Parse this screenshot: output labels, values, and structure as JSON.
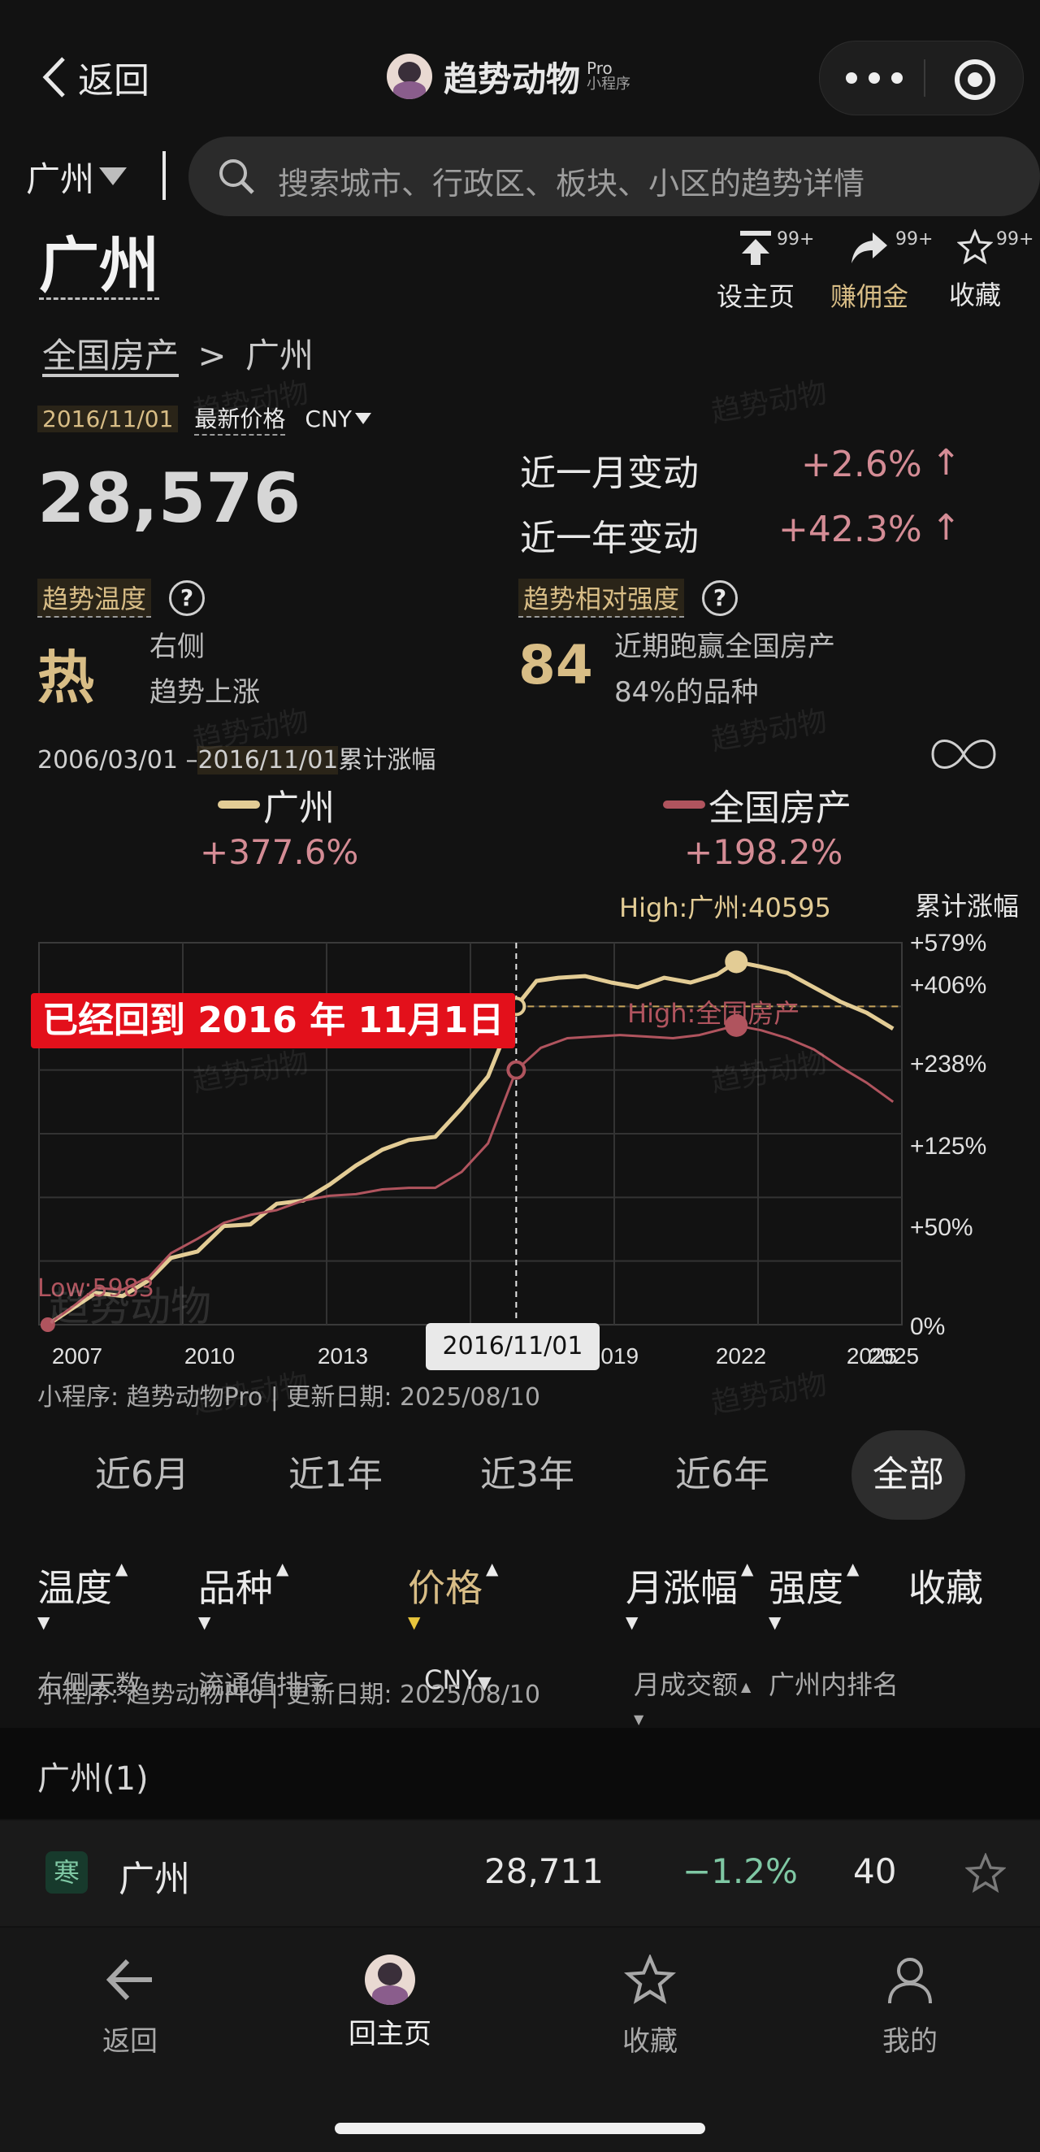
{
  "topbar": {
    "back_label": "返回",
    "app_title": "趋势动物",
    "pro_label": "Pro",
    "mini_label": "小程序"
  },
  "search": {
    "city": "广州",
    "placeholder": "搜索城市、行政区、板块、小区的趋势详情"
  },
  "header": {
    "title": "广州",
    "breadcrumb_root": "全国房产",
    "breadcrumb_sep": ">",
    "breadcrumb_current": "广州",
    "actions": [
      {
        "label": "设主页",
        "count": "99+"
      },
      {
        "label": "赚佣金",
        "count": "99+"
      },
      {
        "label": "收藏",
        "count": "99+"
      }
    ]
  },
  "price": {
    "date": "2016/11/01",
    "label": "最新价格",
    "currency": "CNY",
    "value": "28,576"
  },
  "changes": {
    "month_label": "近一月变动",
    "month_value": "+2.6%",
    "month_arrow": "↑",
    "year_label": "近一年变动",
    "year_value": "+42.3%",
    "year_arrow": "↑"
  },
  "trend_temp": {
    "label": "趋势温度",
    "value": "热",
    "desc1": "右侧",
    "desc2": "趋势上涨"
  },
  "strength": {
    "label": "趋势相对强度",
    "value": "84",
    "desc1": "近期跑赢全国房产",
    "desc2": "84%的品种"
  },
  "watermark": "趋势动物",
  "chart_header": {
    "range_start": "2006/03/01 –",
    "range_end": "2016/11/01",
    "range_suffix": "累计涨幅",
    "series1_name": "广州",
    "series1_value": "+377.6%",
    "series2_name": "全国房产",
    "series2_value": "+198.2%",
    "high1_label": "High:广州:40595",
    "high2_label": "High:全国房产",
    "y_title": "累计涨幅",
    "low_label": "Low:5983",
    "banner": "已经回到 2016 年 11月1日",
    "cursor_date": "2016/11/01",
    "source": "小程序: 趋势动物Pro | 更新日期: 2025/08/10"
  },
  "chart_data": {
    "type": "line",
    "y_ticks": [
      "+579%",
      "+406%",
      "+238%",
      "+125%",
      "+50%",
      "0%"
    ],
    "x_ticks": [
      "2007",
      "2010",
      "2013",
      "2019",
      "2022",
      "2025",
      "2025"
    ],
    "series": [
      {
        "name": "广州",
        "color": "#e3cc95",
        "x": [
          2006.2,
          2006.8,
          2007.3,
          2007.9,
          2008.5,
          2009.0,
          2009.6,
          2010.2,
          2010.8,
          2011.4,
          2012.0,
          2012.6,
          2013.2,
          2013.8,
          2014.4,
          2015.0,
          2015.6,
          2016.2,
          2016.84,
          2017.3,
          2017.8,
          2018.4,
          2019.0,
          2019.6,
          2020.2,
          2020.8,
          2021.4,
          2021.84,
          2022.4,
          2023.0,
          2023.6,
          2024.2,
          2024.8,
          2025.4
        ],
        "y": [
          0,
          55,
          100,
          90,
          140,
          210,
          230,
          310,
          315,
          380,
          390,
          440,
          500,
          550,
          580,
          590,
          680,
          780,
          1000,
          1080,
          1090,
          1095,
          1075,
          1060,
          1090,
          1075,
          1100,
          1140,
          1125,
          1105,
          1060,
          1015,
          980,
          930
        ]
      },
      {
        "name": "全国房产",
        "color": "#b0545e",
        "x": [
          2006.2,
          2006.8,
          2007.3,
          2007.9,
          2008.5,
          2009.0,
          2009.6,
          2010.2,
          2010.8,
          2011.4,
          2012.0,
          2012.6,
          2013.2,
          2013.8,
          2014.4,
          2015.0,
          2015.6,
          2016.2,
          2016.84,
          2017.4,
          2018.0,
          2018.6,
          2019.2,
          2019.8,
          2020.4,
          2021.0,
          2021.84,
          2022.4,
          2023.0,
          2023.6,
          2024.2,
          2024.8,
          2025.4
        ],
        "y": [
          0,
          60,
          115,
          110,
          150,
          225,
          270,
          320,
          345,
          360,
          390,
          405,
          410,
          425,
          430,
          430,
          480,
          570,
          800,
          870,
          900,
          905,
          910,
          905,
          900,
          910,
          940,
          925,
          900,
          865,
          810,
          760,
          700
        ]
      }
    ]
  },
  "periods": [
    "近6月",
    "近1年",
    "近3年",
    "近6年",
    "全部"
  ],
  "period_active": "全部",
  "sort_bar": {
    "c1_main": "温度",
    "c1_sub": "右侧天数",
    "c2_main": "品种",
    "c2_sub": "流通值排序",
    "c3_main": "价格",
    "c3_sub": "CNY",
    "c4_main": "月涨幅",
    "c4_sub": "月成交额",
    "c5_main": "强度",
    "c5_sub": "广州内排名",
    "c6_main": "收藏",
    "source": "小程序: 趋势动物Pro | 更新日期:  2025/08/10"
  },
  "list": {
    "group_title": "广州(1)",
    "rows": [
      {
        "badge": "寒",
        "name": "广州",
        "price": "28,711",
        "change": "−1.2%",
        "strength": "40"
      }
    ]
  },
  "bottom_nav": [
    {
      "label": "返回",
      "icon": "back-arrow-icon"
    },
    {
      "label": "回主页",
      "icon": "avatar-home-icon"
    },
    {
      "label": "收藏",
      "icon": "star-icon"
    },
    {
      "label": "我的",
      "icon": "person-icon"
    }
  ]
}
